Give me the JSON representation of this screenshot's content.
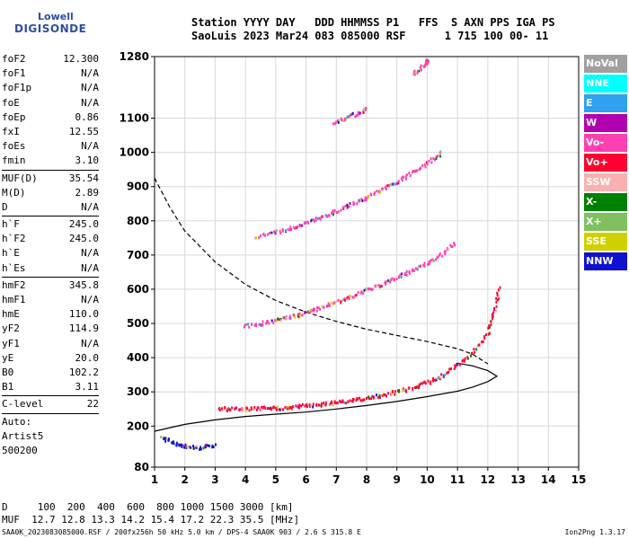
{
  "logo": {
    "line1": "Lowell",
    "line2": "DIGISONDE"
  },
  "header": {
    "line1": "Station YYYY DAY   DDD HHMMSS P1   FFS  S AXN PPS IGA PS",
    "line2": "SaoLuis 2023 Mar24 083 085000 RSF      1 715 100 00- 11"
  },
  "params": [
    {
      "label": "foF2",
      "value": "12.300"
    },
    {
      "label": "foF1",
      "value": "N/A"
    },
    {
      "label": "foF1p",
      "value": "N/A"
    },
    {
      "label": "foE",
      "value": "N/A"
    },
    {
      "label": "foEp",
      "value": "0.86"
    },
    {
      "label": "fxI",
      "value": "12.55"
    },
    {
      "label": "foEs",
      "value": "N/A"
    },
    {
      "label": "fmin",
      "value": "3.10"
    },
    {
      "sep": true
    },
    {
      "label": "MUF(D)",
      "value": "35.54"
    },
    {
      "label": "M(D)",
      "value": "2.89"
    },
    {
      "label": "D",
      "value": "N/A"
    },
    {
      "sep": true
    },
    {
      "label": "h`F",
      "value": "245.0"
    },
    {
      "label": "h`F2",
      "value": "245.0"
    },
    {
      "label": "h`E",
      "value": "N/A"
    },
    {
      "label": "h`Es",
      "value": "N/A"
    },
    {
      "sep": true
    },
    {
      "label": "hmF2",
      "value": "345.8"
    },
    {
      "label": "hmF1",
      "value": "N/A"
    },
    {
      "label": "hmE",
      "value": "110.0"
    },
    {
      "label": "yF2",
      "value": "114.9"
    },
    {
      "label": "yF1",
      "value": "N/A"
    },
    {
      "label": "yE",
      "value": "20.0"
    },
    {
      "label": "B0",
      "value": "102.2"
    },
    {
      "label": "B1",
      "value": "3.11"
    },
    {
      "sep": true
    },
    {
      "label": "C-level",
      "value": "22"
    },
    {
      "sep": true
    },
    {
      "label": "Auto:",
      "value": ""
    },
    {
      "label": "Artist5",
      "value": ""
    },
    {
      "label": "500200",
      "value": ""
    }
  ],
  "legend": [
    {
      "label": "NoVal",
      "color": "#a0a0a0"
    },
    {
      "label": "NNE",
      "color": "#00ffff"
    },
    {
      "label": "E",
      "color": "#30a0f0"
    },
    {
      "label": "W",
      "color": "#b000b0"
    },
    {
      "label": "Vo-",
      "color": "#ff40b0"
    },
    {
      "label": "Vo+",
      "color": "#ff0030"
    },
    {
      "label": "SSW",
      "color": "#f8b0b0"
    },
    {
      "label": "X-",
      "color": "#008000"
    },
    {
      "label": "X+",
      "color": "#80c060"
    },
    {
      "label": "SSE",
      "color": "#d0d000"
    },
    {
      "label": "NNW",
      "color": "#1010d0"
    }
  ],
  "footer": {
    "line1": "D     100  200  400  600  800 1000 1500 3000 [km]",
    "line2": "MUF  12.7 12.8 13.3 14.2 15.4 17.2 22.3 35.5 [MHz]",
    "bottom": "SAA0K_2023083085000.RSF / 200fx256h 50 kHz 5.0 km / DPS-4 SAA0K 903 / 2.6 S 315.8 E",
    "version": "Ion2Png 1.3.17"
  },
  "chart_data": {
    "type": "scatter",
    "xlim": [
      1,
      15
    ],
    "ylim": [
      80,
      1280
    ],
    "x_ticks": [
      1,
      2,
      3,
      4,
      5,
      6,
      7,
      8,
      9,
      10,
      11,
      12,
      13,
      14,
      15
    ],
    "y_ticks": [
      80,
      200,
      300,
      400,
      500,
      600,
      700,
      800,
      900,
      1000,
      1100,
      1280
    ],
    "grid": true,
    "legend_position": "right",
    "profile_line": [
      [
        1.0,
        185
      ],
      [
        2,
        205
      ],
      [
        3,
        218
      ],
      [
        4,
        228
      ],
      [
        5,
        235
      ],
      [
        6,
        241
      ],
      [
        7,
        250
      ],
      [
        8,
        260
      ],
      [
        9,
        272
      ],
      [
        10,
        286
      ],
      [
        11,
        302
      ],
      [
        11.5,
        314
      ],
      [
        12.0,
        330
      ],
      [
        12.3,
        345.8
      ],
      [
        12.0,
        362
      ],
      [
        11.5,
        376
      ],
      [
        11.0,
        384
      ]
    ],
    "muf_curve": [
      [
        1.0,
        925
      ],
      [
        1.5,
        840
      ],
      [
        2,
        770
      ],
      [
        3,
        680
      ],
      [
        4,
        614
      ],
      [
        5,
        567
      ],
      [
        6,
        533
      ],
      [
        7,
        506
      ],
      [
        8,
        483
      ],
      [
        9,
        465
      ],
      [
        10,
        447
      ],
      [
        11,
        426
      ],
      [
        11.5,
        410
      ],
      [
        12.0,
        382
      ]
    ],
    "traces": [
      {
        "x": [
          3.1,
          3.5,
          4.0,
          4.5,
          5.0,
          5.5,
          6.0,
          6.5,
          7.0,
          7.5,
          8.0,
          8.5,
          9.0,
          9.5,
          10.0,
          10.5,
          11.0,
          11.5,
          12.0,
          12.2,
          12.35
        ],
        "y": [
          255,
          253,
          252,
          254,
          256,
          259,
          263,
          267,
          272,
          278,
          285,
          293,
          303,
          316,
          331,
          352,
          382,
          420,
          480,
          540,
          610
        ]
      },
      {
        "x": [
          3.9,
          4.5,
          5.0,
          5.5,
          6.0,
          6.5,
          7.0,
          7.5,
          8.0,
          8.5,
          9.0,
          9.5,
          10.0,
          10.5,
          10.9
        ],
        "y": [
          495,
          503,
          512,
          522,
          535,
          550,
          566,
          583,
          600,
          618,
          637,
          658,
          680,
          708,
          740
        ]
      },
      {
        "x": [
          4.3,
          5.0,
          5.5,
          6.0,
          6.5,
          7.0,
          7.5,
          8.0,
          8.5,
          9.0,
          9.5,
          10.0,
          10.5
        ],
        "y": [
          755,
          770,
          782,
          798,
          815,
          833,
          853,
          873,
          895,
          918,
          944,
          972,
          1005
        ]
      },
      {
        "x": [
          6.9,
          7.3,
          7.7,
          8.0
        ],
        "y": [
          1090,
          1105,
          1118,
          1130
        ]
      },
      {
        "x": [
          9.5,
          9.9,
          10.0
        ],
        "y": [
          1230,
          1260,
          1275
        ]
      },
      {
        "x": [
          1.2,
          1.6,
          2.0,
          2.5,
          3.0
        ],
        "y": [
          170,
          155,
          145,
          140,
          150
        ]
      }
    ],
    "traces_colors": [
      "#ff0030",
      "#ff40b0",
      "#ff40b0",
      "#ff40b0",
      "#ff40b0",
      "#1010d0"
    ]
  }
}
